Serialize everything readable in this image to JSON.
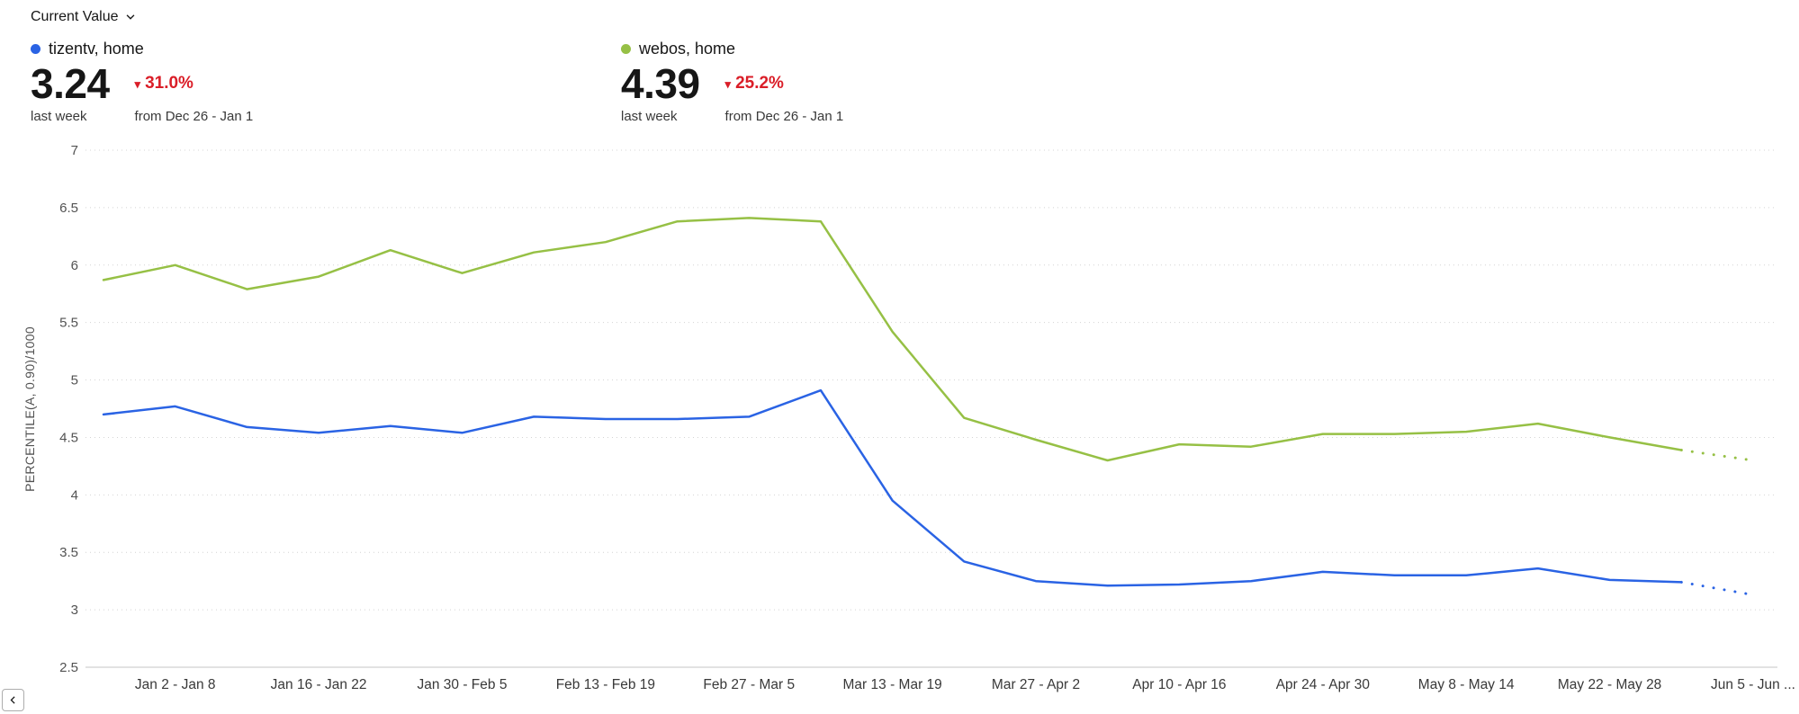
{
  "controls": {
    "metric_selector_label": "Current Value"
  },
  "kpis": [
    {
      "name": "tizentv, home",
      "color": "#2a63e4",
      "value": "3.24",
      "period_label": "last week",
      "delta_icon": "▾",
      "delta": "31.0%",
      "delta_direction": "down",
      "comparison_label": "from Dec 26 - Jan 1"
    },
    {
      "name": "webos, home",
      "color": "#96c045",
      "value": "4.39",
      "period_label": "last week",
      "delta_icon": "▾",
      "delta": "25.2%",
      "delta_direction": "down",
      "comparison_label": "from Dec 26 - Jan 1"
    }
  ],
  "chart_data": {
    "type": "line",
    "ylabel": "PERCENTILE(A, 0.90)/1000",
    "ylim": [
      2.5,
      7
    ],
    "ytick_step": 0.5,
    "grid": "dotted-horizontal",
    "x_tick_labels": [
      "Jan 2 - Jan 8",
      "Jan 16 - Jan 22",
      "Jan 30 - Feb 5",
      "Feb 13 - Feb 19",
      "Feb 27 - Mar 5",
      "Mar 13 - Mar 19",
      "Mar 27 - Apr 2",
      "Apr 10 - Apr 16",
      "Apr 24 - Apr 30",
      "May 8 - May 14",
      "May 22 - May 28",
      "Jun 5 - Jun ..."
    ],
    "labeled_point_start": 1,
    "labeled_point_step": 2,
    "series": [
      {
        "name": "tizentv, home",
        "color": "#2a63e4",
        "values": [
          4.7,
          4.77,
          4.59,
          4.54,
          4.6,
          4.54,
          4.68,
          4.66,
          4.66,
          4.68,
          4.91,
          3.95,
          3.42,
          3.25,
          3.21,
          3.22,
          3.25,
          3.33,
          3.3,
          3.3,
          3.36,
          3.26,
          3.24,
          3.13
        ],
        "dotted_tail_points": 1
      },
      {
        "name": "webos, home",
        "color": "#96c045",
        "values": [
          5.87,
          6.0,
          5.79,
          5.9,
          6.13,
          5.93,
          6.11,
          6.2,
          6.38,
          6.41,
          6.38,
          5.42,
          4.67,
          4.48,
          4.3,
          4.44,
          4.42,
          4.53,
          4.53,
          4.55,
          4.62,
          4.5,
          4.39,
          4.3
        ],
        "dotted_tail_points": 1
      }
    ]
  },
  "chart_nav": {
    "scroll_left": "‹"
  }
}
